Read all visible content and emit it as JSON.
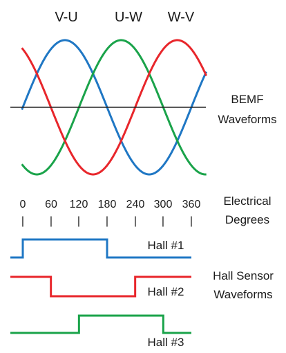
{
  "phase_labels": [
    "V-U",
    "U-W",
    "W-V"
  ],
  "bemf_label": {
    "line1": "BEMF",
    "line2": "Waveforms"
  },
  "degree_ticks": [
    "0",
    "60",
    "120",
    "180",
    "240",
    "300",
    "360"
  ],
  "tick_separator": "|",
  "electrical_label": {
    "line1": "Electrical",
    "line2": "Degrees"
  },
  "hall_sensor_label": {
    "line1": "Hall Sensor",
    "line2": "Waveforms"
  },
  "hall_signals": [
    {
      "label": "Hall #1",
      "high_from_deg": 0,
      "high_to_deg": 180,
      "color": "#1f77c4"
    },
    {
      "label": "Hall #2",
      "high_from_deg": 240,
      "high_to_deg": 60,
      "color": "#e8262b"
    },
    {
      "label": "Hall #3",
      "high_from_deg": 120,
      "high_to_deg": 300,
      "color": "#1aa34a"
    }
  ],
  "bemf_waves": [
    {
      "name": "V-U",
      "color": "#1f77c4",
      "phase_deg": 0
    },
    {
      "name": "U-W",
      "color": "#1aa34a",
      "phase_deg": 120
    },
    {
      "name": "W-V",
      "color": "#e8262b",
      "phase_deg": 240
    }
  ],
  "colors": {
    "blue": "#1f77c4",
    "green": "#1aa34a",
    "red": "#e8262b",
    "axis": "#222222",
    "text": "#1a1a1a"
  }
}
